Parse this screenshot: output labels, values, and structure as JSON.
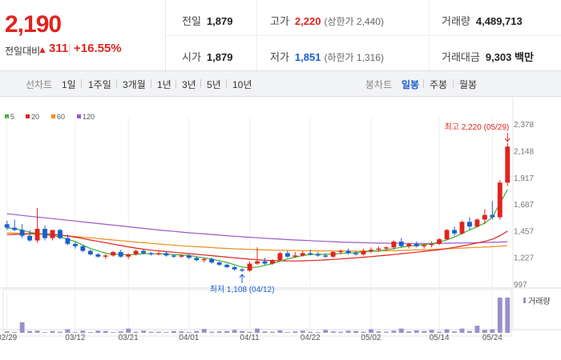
{
  "header": {
    "price": "2,190",
    "change_label": "전일대비",
    "change_arrow": "▲",
    "change_value": "311",
    "change_pct": "+16.55%",
    "colors": {
      "up": "#e0231e",
      "down": "#1a5fd0"
    }
  },
  "quote": {
    "prev_close": {
      "label": "전일",
      "value": "1,879"
    },
    "high": {
      "label": "고가",
      "value": "2,220",
      "sub": "(상한가 2,440)"
    },
    "volume": {
      "label": "거래량",
      "value": "4,489,713"
    },
    "open": {
      "label": "시가",
      "value": "1,879"
    },
    "low": {
      "label": "저가",
      "value": "1,851",
      "sub": "(하한가 1,316)"
    },
    "amount": {
      "label": "거래대금",
      "value": "9,303 백만"
    }
  },
  "tabs": {
    "period_label": "선차트",
    "periods": [
      "1일",
      "1주일",
      "3개월",
      "1년",
      "3년",
      "5년",
      "10년"
    ],
    "candle_label": "봉차트",
    "candles": [
      "일봉",
      "주봉",
      "월봉"
    ],
    "active_candle": "일봉"
  },
  "legend": [
    {
      "name": "5",
      "color": "#3fae2a"
    },
    {
      "name": "20",
      "color": "#e0231e"
    },
    {
      "name": "60",
      "color": "#f08c1a"
    },
    {
      "name": "120",
      "color": "#9b59c7"
    }
  ],
  "chart_data": {
    "type": "candlestick",
    "y_ticks": [
      2378,
      2148,
      1917,
      1687,
      1457,
      1227,
      997
    ],
    "ylim": [
      997,
      2378
    ],
    "x_tick_labels": [
      "02/29",
      "03/12",
      "03/21",
      "04/01",
      "04/11",
      "04/22",
      "05/02",
      "05/14",
      "05/24"
    ],
    "x_tick_index": [
      0,
      9,
      16,
      24,
      32,
      40,
      48,
      57,
      64
    ],
    "high_annotation": "최고 2,220 (05/29)",
    "low_annotation": "최저 1,108 (04/12)",
    "volume_label": "거래량",
    "candles": [
      [
        1520,
        1550,
        1470,
        1490
      ],
      [
        1490,
        1560,
        1460,
        1470
      ],
      [
        1470,
        1520,
        1400,
        1420
      ],
      [
        1420,
        1470,
        1370,
        1380
      ],
      [
        1380,
        1660,
        1360,
        1480
      ],
      [
        1480,
        1510,
        1380,
        1400
      ],
      [
        1400,
        1470,
        1380,
        1470
      ],
      [
        1470,
        1480,
        1390,
        1400
      ],
      [
        1400,
        1430,
        1340,
        1350
      ],
      [
        1350,
        1370,
        1310,
        1330
      ],
      [
        1330,
        1340,
        1280,
        1290
      ],
      [
        1290,
        1300,
        1250,
        1260
      ],
      [
        1260,
        1270,
        1230,
        1240
      ],
      [
        1240,
        1260,
        1220,
        1250
      ],
      [
        1250,
        1290,
        1240,
        1280
      ],
      [
        1280,
        1300,
        1230,
        1240
      ],
      [
        1240,
        1270,
        1220,
        1260
      ],
      [
        1260,
        1300,
        1250,
        1290
      ],
      [
        1290,
        1300,
        1260,
        1270
      ],
      [
        1270,
        1280,
        1250,
        1260
      ],
      [
        1260,
        1280,
        1250,
        1270
      ],
      [
        1270,
        1280,
        1240,
        1250
      ],
      [
        1250,
        1260,
        1230,
        1240
      ],
      [
        1240,
        1260,
        1230,
        1250
      ],
      [
        1250,
        1260,
        1220,
        1230
      ],
      [
        1230,
        1240,
        1200,
        1210
      ],
      [
        1210,
        1230,
        1190,
        1220
      ],
      [
        1220,
        1230,
        1180,
        1190
      ],
      [
        1190,
        1200,
        1160,
        1170
      ],
      [
        1170,
        1180,
        1140,
        1150
      ],
      [
        1150,
        1160,
        1120,
        1130
      ],
      [
        1130,
        1140,
        1108,
        1120
      ],
      [
        1120,
        1200,
        1110,
        1180
      ],
      [
        1180,
        1320,
        1170,
        1200
      ],
      [
        1200,
        1230,
        1170,
        1180
      ],
      [
        1180,
        1220,
        1170,
        1210
      ],
      [
        1210,
        1280,
        1200,
        1270
      ],
      [
        1270,
        1290,
        1230,
        1240
      ],
      [
        1240,
        1280,
        1230,
        1250
      ],
      [
        1250,
        1290,
        1240,
        1270
      ],
      [
        1270,
        1300,
        1250,
        1260
      ],
      [
        1260,
        1280,
        1240,
        1250
      ],
      [
        1250,
        1270,
        1230,
        1240
      ],
      [
        1240,
        1290,
        1230,
        1280
      ],
      [
        1280,
        1300,
        1260,
        1290
      ],
      [
        1290,
        1310,
        1260,
        1270
      ],
      [
        1270,
        1290,
        1250,
        1260
      ],
      [
        1260,
        1310,
        1250,
        1290
      ],
      [
        1290,
        1320,
        1270,
        1300
      ],
      [
        1300,
        1330,
        1280,
        1310
      ],
      [
        1310,
        1330,
        1290,
        1320
      ],
      [
        1320,
        1380,
        1300,
        1370
      ],
      [
        1370,
        1400,
        1320,
        1330
      ],
      [
        1330,
        1360,
        1310,
        1350
      ],
      [
        1350,
        1370,
        1320,
        1330
      ],
      [
        1330,
        1350,
        1310,
        1340
      ],
      [
        1340,
        1370,
        1320,
        1350
      ],
      [
        1350,
        1400,
        1340,
        1390
      ],
      [
        1390,
        1480,
        1380,
        1470
      ],
      [
        1470,
        1500,
        1420,
        1440
      ],
      [
        1440,
        1550,
        1430,
        1540
      ],
      [
        1540,
        1580,
        1470,
        1500
      ],
      [
        1500,
        1570,
        1490,
        1560
      ],
      [
        1560,
        1650,
        1520,
        1600
      ],
      [
        1600,
        1720,
        1560,
        1580
      ],
      [
        1580,
        1900,
        1560,
        1879
      ],
      [
        1879,
        2220,
        1851,
        2190
      ]
    ],
    "volumes": [
      4,
      2,
      30,
      5,
      6,
      2,
      5,
      3,
      10,
      2,
      6,
      2,
      6,
      5,
      2,
      4,
      12,
      3,
      6,
      3,
      3,
      2,
      5,
      4,
      2,
      5,
      11,
      3,
      4,
      5,
      8,
      5,
      3,
      12,
      4,
      3,
      7,
      2,
      4,
      6,
      3,
      2,
      8,
      4,
      3,
      6,
      5,
      3,
      10,
      4,
      3,
      6,
      12,
      4,
      7,
      5,
      8,
      3,
      10,
      4,
      12,
      5,
      20,
      8,
      10,
      100,
      100
    ],
    "ma5": [
      1490,
      1480,
      1470,
      1450,
      1440,
      1430,
      1420,
      1410,
      1390,
      1370,
      1340,
      1310,
      1290,
      1270,
      1260,
      1260,
      1255,
      1260,
      1265,
      1265,
      1265,
      1262,
      1258,
      1255,
      1250,
      1240,
      1230,
      1220,
      1205,
      1190,
      1170,
      1150,
      1145,
      1150,
      1165,
      1180,
      1200,
      1220,
      1235,
      1250,
      1258,
      1260,
      1260,
      1262,
      1268,
      1272,
      1275,
      1280,
      1285,
      1290,
      1298,
      1310,
      1320,
      1332,
      1338,
      1345,
      1352,
      1365,
      1385,
      1410,
      1440,
      1470,
      1500,
      1530,
      1580,
      1700,
      1820
    ],
    "ma20": [
      1430,
      1432,
      1434,
      1436,
      1438,
      1436,
      1432,
      1426,
      1418,
      1408,
      1396,
      1384,
      1372,
      1360,
      1348,
      1336,
      1324,
      1314,
      1304,
      1296,
      1290,
      1284,
      1278,
      1272,
      1266,
      1260,
      1254,
      1248,
      1242,
      1236,
      1230,
      1224,
      1218,
      1213,
      1209,
      1206,
      1204,
      1203,
      1203,
      1204,
      1206,
      1209,
      1212,
      1216,
      1220,
      1225,
      1230,
      1235,
      1240,
      1246,
      1252,
      1258,
      1265,
      1272,
      1279,
      1286,
      1293,
      1300,
      1310,
      1320,
      1332,
      1344,
      1358,
      1372,
      1390,
      1420,
      1460
    ],
    "ma60": [
      1445,
      1443,
      1441,
      1438,
      1435,
      1432,
      1428,
      1424,
      1419,
      1414,
      1408,
      1402,
      1396,
      1390,
      1384,
      1378,
      1372,
      1366,
      1360,
      1354,
      1349,
      1344,
      1339,
      1334,
      1330,
      1326,
      1322,
      1318,
      1314,
      1311,
      1308,
      1305,
      1302,
      1300,
      1298,
      1296,
      1295,
      1294,
      1293,
      1292,
      1291,
      1290,
      1289,
      1289,
      1288,
      1288,
      1288,
      1288,
      1289,
      1290,
      1291,
      1292,
      1294,
      1296,
      1298,
      1300,
      1302,
      1305,
      1308,
      1311,
      1314,
      1317,
      1320,
      1323,
      1326,
      1330,
      1335
    ],
    "ma120": [
      1610,
      1603,
      1596,
      1589,
      1582,
      1575,
      1568,
      1561,
      1554,
      1547,
      1540,
      1533,
      1526,
      1519,
      1512,
      1505,
      1498,
      1491,
      1484,
      1477,
      1470,
      1464,
      1458,
      1452,
      1446,
      1441,
      1436,
      1431,
      1426,
      1421,
      1416,
      1411,
      1407,
      1403,
      1399,
      1395,
      1391,
      1387,
      1384,
      1381,
      1378,
      1375,
      1372,
      1369,
      1366,
      1364,
      1362,
      1360,
      1358,
      1357,
      1356,
      1355,
      1354,
      1354,
      1354,
      1354,
      1354,
      1355,
      1356,
      1357,
      1358,
      1359,
      1360,
      1362,
      1364,
      1366,
      1370
    ]
  }
}
